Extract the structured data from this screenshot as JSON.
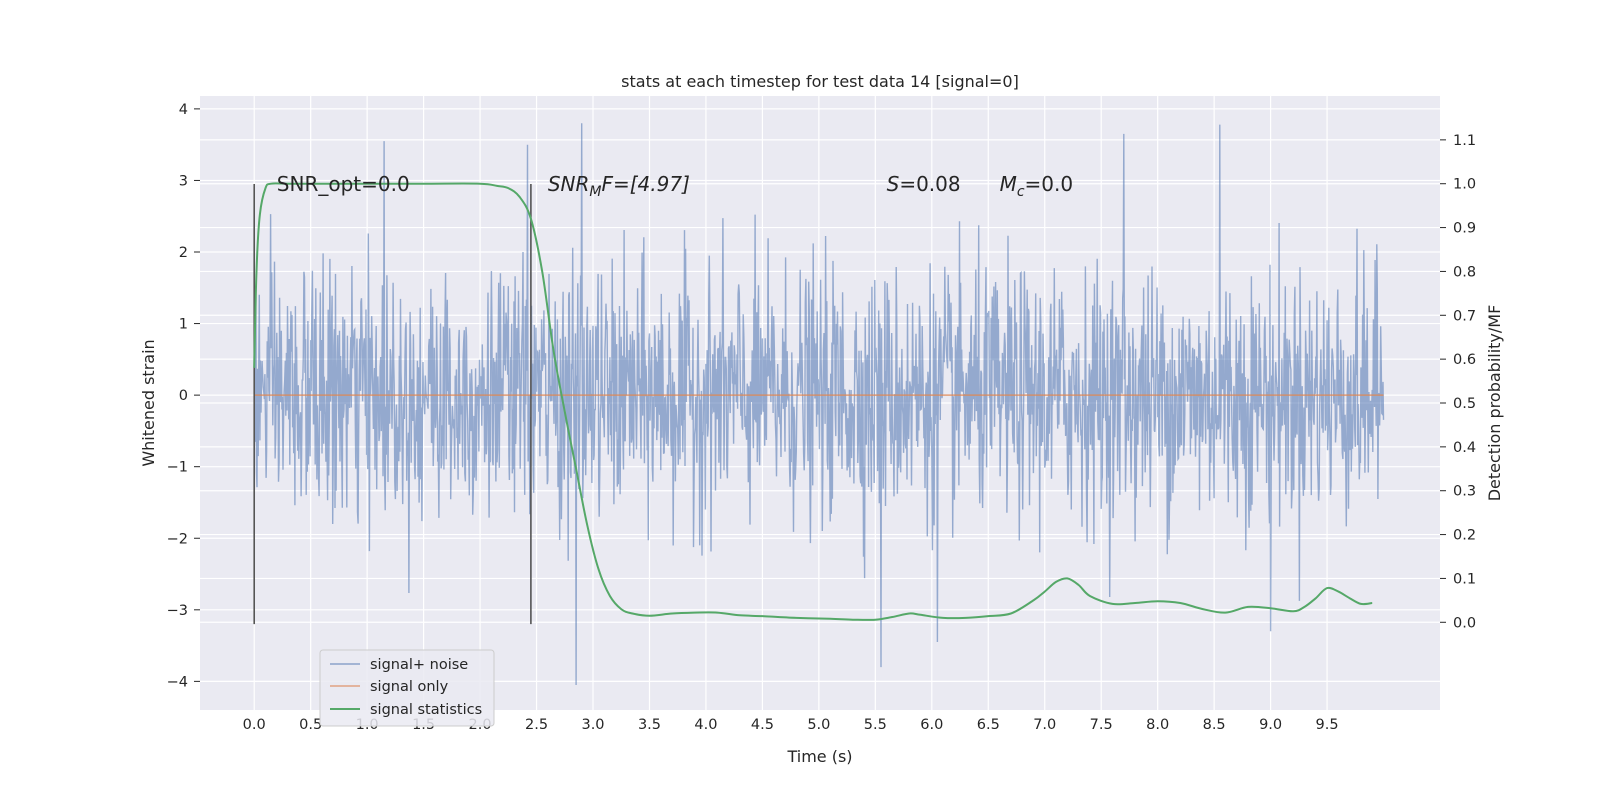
{
  "chart_data": {
    "type": "line",
    "title": "stats at each timestep for test data 14 [signal=0]",
    "xlabel": "Time (s)",
    "ylabel": "Whitened strain",
    "y2label": "Detection probability/MF",
    "xlim": [
      -0.48,
      10.5
    ],
    "ylim": [
      -4.4,
      4.18
    ],
    "y2lim": [
      -0.2,
      1.2
    ],
    "x_ticks": [
      "0.0",
      "0.5",
      "1.0",
      "1.5",
      "2.0",
      "2.5",
      "3.0",
      "3.5",
      "4.0",
      "4.5",
      "5.0",
      "5.5",
      "6.0",
      "6.5",
      "7.0",
      "7.5",
      "8.0",
      "8.5",
      "9.0",
      "9.5"
    ],
    "y_ticks": [
      "4",
      "3",
      "2",
      "1",
      "0",
      "−1",
      "−2",
      "−3",
      "−4"
    ],
    "y2_ticks": [
      "1.1",
      "1.0",
      "0.9",
      "0.8",
      "0.7",
      "0.6",
      "0.5",
      "0.4",
      "0.3",
      "0.2",
      "0.1",
      "0.0"
    ],
    "grid": true,
    "legend_position": "lower-left",
    "colors": {
      "background": "#eaeaf2",
      "grid": "#ffffff",
      "noise": "#4c72b0",
      "signal": "#dd8452",
      "statistics": "#55a868",
      "vline": "#555555"
    },
    "series": [
      {
        "name": "signal+ noise",
        "axis": "left",
        "kind": "noise",
        "x_range": [
          0.0,
          10.0
        ],
        "envelope_typical": [
          -1.7,
          1.7
        ],
        "approx_extremes": [
          {
            "x": 1.15,
            "y": 3.55
          },
          {
            "x": 2.42,
            "y": 3.5
          },
          {
            "x": 2.9,
            "y": 3.8
          },
          {
            "x": 7.7,
            "y": 3.65
          },
          {
            "x": 8.55,
            "y": 3.78
          },
          {
            "x": 2.85,
            "y": -4.05
          },
          {
            "x": 5.55,
            "y": -3.8
          },
          {
            "x": 6.05,
            "y": -3.45
          },
          {
            "x": 9.0,
            "y": -3.3
          }
        ]
      },
      {
        "name": "signal only",
        "axis": "left",
        "x": [
          0.0,
          10.0
        ],
        "values": [
          0.0,
          0.0
        ]
      },
      {
        "name": "signal statistics",
        "axis": "right",
        "x": [
          0.0,
          0.02,
          0.05,
          0.1,
          0.15,
          0.3,
          0.6,
          1.0,
          1.5,
          2.0,
          2.15,
          2.25,
          2.35,
          2.45,
          2.55,
          2.65,
          2.75,
          2.85,
          2.95,
          3.05,
          3.15,
          3.25,
          3.35,
          3.5,
          3.7,
          3.9,
          4.1,
          4.3,
          4.5,
          4.8,
          5.1,
          5.3,
          5.5,
          5.65,
          5.8,
          5.9,
          6.1,
          6.3,
          6.5,
          6.7,
          6.9,
          7.0,
          7.1,
          7.2,
          7.3,
          7.4,
          7.6,
          7.8,
          8.0,
          8.2,
          8.4,
          8.6,
          8.8,
          9.0,
          9.2,
          9.3,
          9.4,
          9.5,
          9.6,
          9.7,
          9.8,
          9.9
        ],
        "values": [
          0.58,
          0.8,
          0.93,
          0.99,
          1.0,
          1.0,
          1.0,
          1.0,
          1.0,
          1.0,
          0.995,
          0.99,
          0.97,
          0.92,
          0.8,
          0.62,
          0.48,
          0.35,
          0.22,
          0.12,
          0.06,
          0.03,
          0.02,
          0.015,
          0.02,
          0.022,
          0.022,
          0.016,
          0.014,
          0.01,
          0.008,
          0.006,
          0.006,
          0.012,
          0.02,
          0.017,
          0.01,
          0.01,
          0.014,
          0.02,
          0.05,
          0.07,
          0.092,
          0.1,
          0.085,
          0.06,
          0.042,
          0.044,
          0.048,
          0.044,
          0.03,
          0.022,
          0.035,
          0.032,
          0.025,
          0.035,
          0.055,
          0.078,
          0.07,
          0.055,
          0.042,
          0.044
        ]
      }
    ],
    "vlines": [
      {
        "x": 0.0,
        "ymin": -3.2,
        "ymax": 2.95
      },
      {
        "x": 2.45,
        "ymin": -3.2,
        "ymax": 2.95
      }
    ],
    "annotations": [
      {
        "x": 0.2,
        "y": 2.95,
        "base": "SNR_opt=0.0",
        "sub": "",
        "rest": ""
      },
      {
        "x": 2.6,
        "y": 2.95,
        "base": "SNR",
        "sub": "M",
        "rest": "F=[4.97]"
      },
      {
        "x": 5.6,
        "y": 2.95,
        "base": "S",
        "sub": "",
        "rest": "=0.08"
      },
      {
        "x": 6.6,
        "y": 2.95,
        "base": "M",
        "sub": "c",
        "rest": "=0.0"
      }
    ]
  }
}
